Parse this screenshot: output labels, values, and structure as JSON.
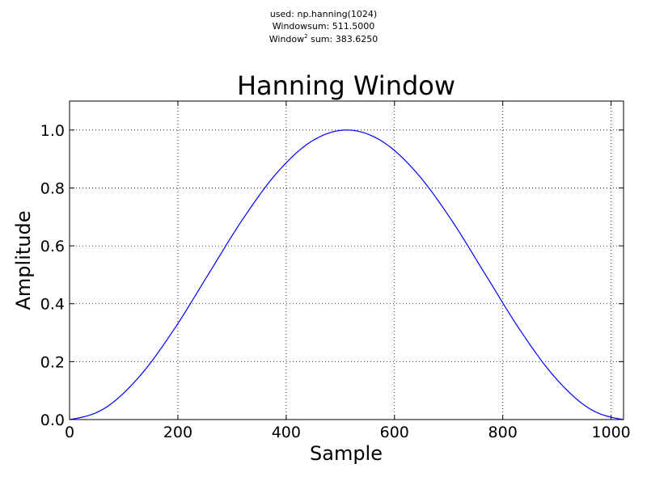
{
  "header": {
    "line1": "used: np.hanning(1024)",
    "line2": "Windowsum: 511.5000",
    "line3_prefix": "Window",
    "line3_sup": "2",
    "line3_suffix": " sum: 383.6250"
  },
  "chart_data": {
    "type": "line",
    "title": "Hanning Window",
    "xlabel": "Sample",
    "ylabel": "Amplitude",
    "xlim": [
      0,
      1023
    ],
    "ylim": [
      0,
      1.1
    ],
    "xticks": [
      0,
      200,
      400,
      600,
      800,
      1000
    ],
    "yticks": [
      0.0,
      0.2,
      0.4,
      0.6,
      0.8,
      1.0
    ],
    "xtick_labels": [
      "0",
      "200",
      "400",
      "600",
      "800",
      "1000"
    ],
    "ytick_labels": [
      "0.0",
      "0.2",
      "0.4",
      "0.6",
      "0.8",
      "1.0"
    ],
    "grid": true,
    "series": [
      {
        "color": "#0000ff",
        "function": "np.hanning(1024)",
        "x": [
          0,
          64,
          128,
          192,
          256,
          320,
          384,
          448,
          512,
          576,
          640,
          704,
          768,
          832,
          896,
          960,
          1023
        ],
        "values": [
          0.0,
          0.0381,
          0.1465,
          0.3087,
          0.5007,
          0.6925,
          0.8542,
          0.9622,
          1.0,
          0.9622,
          0.8542,
          0.6925,
          0.5007,
          0.3087,
          0.1465,
          0.0381,
          0.0
        ]
      }
    ]
  }
}
